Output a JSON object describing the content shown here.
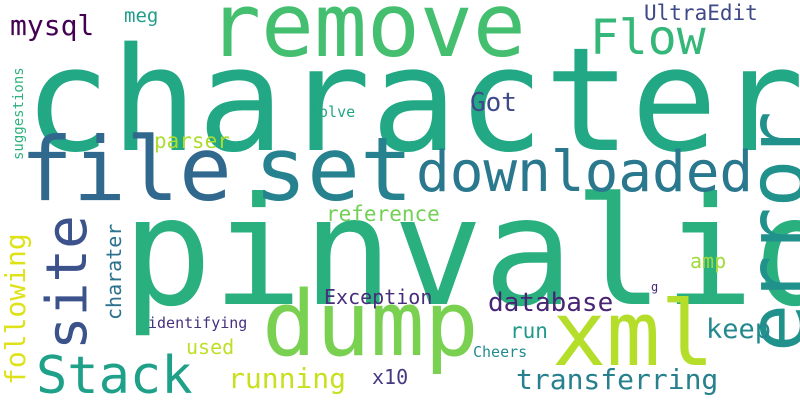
{
  "words": [
    {
      "id": "character",
      "text": "character",
      "color": "#22a884"
    },
    {
      "id": "pinvalid",
      "text": "pinvalid",
      "color": "#2ab07f"
    },
    {
      "id": "remove",
      "text": "remove",
      "color": "#44bf70"
    },
    {
      "id": "file",
      "text": "file",
      "color": "#31688e"
    },
    {
      "id": "set",
      "text": "set",
      "color": "#26828e"
    },
    {
      "id": "dump",
      "text": "dump",
      "color": "#7ad151"
    },
    {
      "id": "xml",
      "text": "xml",
      "color": "#b5de2b"
    },
    {
      "id": "error",
      "text": "error",
      "color": "#21918c"
    },
    {
      "id": "downloaded",
      "text": "downloaded",
      "color": "#2a788e"
    },
    {
      "id": "site",
      "text": "site",
      "color": "#3b528b"
    },
    {
      "id": "stack",
      "text": "Stack",
      "color": "#1fa088"
    },
    {
      "id": "flow",
      "text": "Flow",
      "color": "#35b779"
    },
    {
      "id": "mysql",
      "text": "mysql",
      "color": "#440154"
    },
    {
      "id": "meg",
      "text": "meg",
      "color": "#1f9e89"
    },
    {
      "id": "ultraedit",
      "text": "UltraEdit",
      "color": "#3e4989"
    },
    {
      "id": "got",
      "text": "Got",
      "color": "#3e4a89"
    },
    {
      "id": "solve",
      "text": "solve",
      "color": "#21a685"
    },
    {
      "id": "suggestions",
      "text": "suggestions",
      "color": "#2db27d"
    },
    {
      "id": "parser",
      "text": "parser",
      "color": "#addc30"
    },
    {
      "id": "reference",
      "text": "reference",
      "color": "#73d056"
    },
    {
      "id": "following",
      "text": "following",
      "color": "#dde318"
    },
    {
      "id": "charater",
      "text": "charater",
      "color": "#2c728e"
    },
    {
      "id": "amp",
      "text": "amp",
      "color": "#a0da39"
    },
    {
      "id": "exception",
      "text": "Exception",
      "color": "#472d7b"
    },
    {
      "id": "database",
      "text": "database",
      "color": "#482475"
    },
    {
      "id": "keep",
      "text": "keep",
      "color": "#23898e"
    },
    {
      "id": "run",
      "text": "run",
      "color": "#1f9a8a"
    },
    {
      "id": "identifying",
      "text": "identifying",
      "color": "#46327e"
    },
    {
      "id": "used",
      "text": "used",
      "color": "#bddf26"
    },
    {
      "id": "running",
      "text": "running",
      "color": "#c8e020"
    },
    {
      "id": "x10",
      "text": "x10",
      "color": "#443983"
    },
    {
      "id": "transferring",
      "text": "transferring",
      "color": "#27808e"
    },
    {
      "id": "cheers",
      "text": "Cheers",
      "color": "#228c8d"
    },
    {
      "id": "g",
      "text": "g",
      "color": "#482677"
    }
  ]
}
